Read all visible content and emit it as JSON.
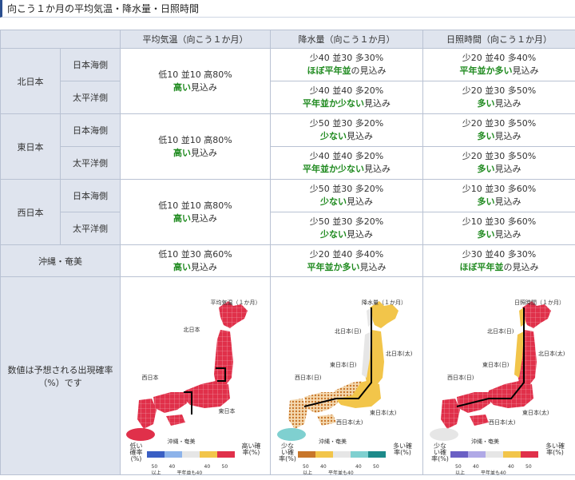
{
  "page_title": "向こう１か月の平均気温・降水量・日照時間",
  "headers": {
    "temperature": "平均気温（向こう１か月）",
    "precipitation": "降水量（向こう１か月）",
    "sunshine": "日照時間（向こう１か月）"
  },
  "regions": {
    "north": "北日本",
    "east": "東日本",
    "west": "西日本",
    "okinawa": "沖縄・奄美"
  },
  "sides": {
    "sea_of_japan": "日本海側",
    "pacific": "太平洋側"
  },
  "cells": {
    "north_temp": [
      "低10 並10 高80%",
      "高い",
      "見込み"
    ],
    "east_temp": [
      "低10 並10 高80%",
      "高い",
      "見込み"
    ],
    "west_temp": [
      "低10 並10 高80%",
      "高い",
      "見込み"
    ],
    "okinawa_temp": [
      "低10 並30 高60%",
      "高い",
      "見込み"
    ],
    "north_sea_precip": [
      "少40 並30 多30%",
      "ほぼ平年並",
      "の見込み"
    ],
    "north_pac_precip": [
      "少40 並40 多20%",
      "平年並か少ない",
      "見込み"
    ],
    "east_sea_precip": [
      "少50 並30 多20%",
      "少ない",
      "見込み"
    ],
    "east_pac_precip": [
      "少40 並40 多20%",
      "平年並か少ない",
      "見込み"
    ],
    "west_sea_precip": [
      "少50 並30 多20%",
      "少ない",
      "見込み"
    ],
    "west_pac_precip": [
      "少50 並30 多20%",
      "少ない",
      "見込み"
    ],
    "okinawa_precip": [
      "少20 並40 多40%",
      "平年並か多い",
      "見込み"
    ],
    "north_sea_sun": [
      "少20 並40 多40%",
      "平年並か多い",
      "見込み"
    ],
    "north_pac_sun": [
      "少20 並30 多50%",
      "多い",
      "見込み"
    ],
    "east_sea_sun": [
      "少20 並30 多50%",
      "多い",
      "見込み"
    ],
    "east_pac_sun": [
      "少20 並30 多50%",
      "多い",
      "見込み"
    ],
    "west_sea_sun": [
      "少10 並30 多60%",
      "多い",
      "見込み"
    ],
    "west_pac_sun": [
      "少10 並30 多60%",
      "多い",
      "見込み"
    ],
    "okinawa_sun": [
      "少30 並40 多30%",
      "ほぼ平年並",
      "の見込み"
    ]
  },
  "map_row_label": [
    "数値は予想される出現確率",
    "（%）です"
  ],
  "maps": {
    "temp": {
      "title": "平均気温（１か月）",
      "labels": {
        "north": "北日本",
        "east": "東日本",
        "west": "西日本",
        "okinawa": "沖縄・奄美"
      },
      "legend": {
        "low": "低い確率(%)",
        "high": "高い確率(%)",
        "v50a": "50",
        "v40a": "40",
        "v40b": "40",
        "v50b": "50",
        "ijo": "以上",
        "normal": "平年並も40"
      }
    },
    "precip": {
      "title": "降水量（１か月）",
      "labels": {
        "north_sea": "北日本(日)",
        "north_pac": "北日本(太)",
        "east_sea": "東日本(日)",
        "east_pac": "東日本(太)",
        "west_sea": "西日本(日)",
        "west_pac": "西日本(太)",
        "okinawa": "沖縄・奄美"
      },
      "legend": {
        "low": "少ない確率(%)",
        "high": "多い確率(%)",
        "v50a": "50",
        "v40a": "40",
        "v40b": "40",
        "v50b": "50",
        "ijo": "以上",
        "normal": "平年並も40"
      }
    },
    "sun": {
      "title": "日照時間（１か月）",
      "labels": {
        "north_sea": "北日本(日)",
        "north_pac": "北日本(太)",
        "east_sea": "東日本(日)",
        "east_pac": "東日本(太)",
        "west_sea": "西日本(日)",
        "west_pac": "西日本(太)",
        "okinawa": "沖縄・奄美"
      },
      "legend": {
        "low": "少ない確率(%)",
        "high": "多い確率(%)",
        "v50a": "50",
        "v40a": "40",
        "v40b": "40",
        "v50b": "50",
        "ijo": "以上",
        "normal": "平年並も40"
      }
    }
  },
  "colors": {
    "high_red": "#e0304a",
    "low_blue": "#4a7fd0",
    "normal_gray": "#e6e6e6",
    "few_brown": "#c8762a",
    "more_teal": "#1d8a8a",
    "sun_yellow": "#f2c54a",
    "okinawa_temp": "#e0304a",
    "okinawa_precip": "#7fd0d0",
    "okinawa_sun": "#e6e6e6",
    "green_text": "#1f8a1f"
  }
}
